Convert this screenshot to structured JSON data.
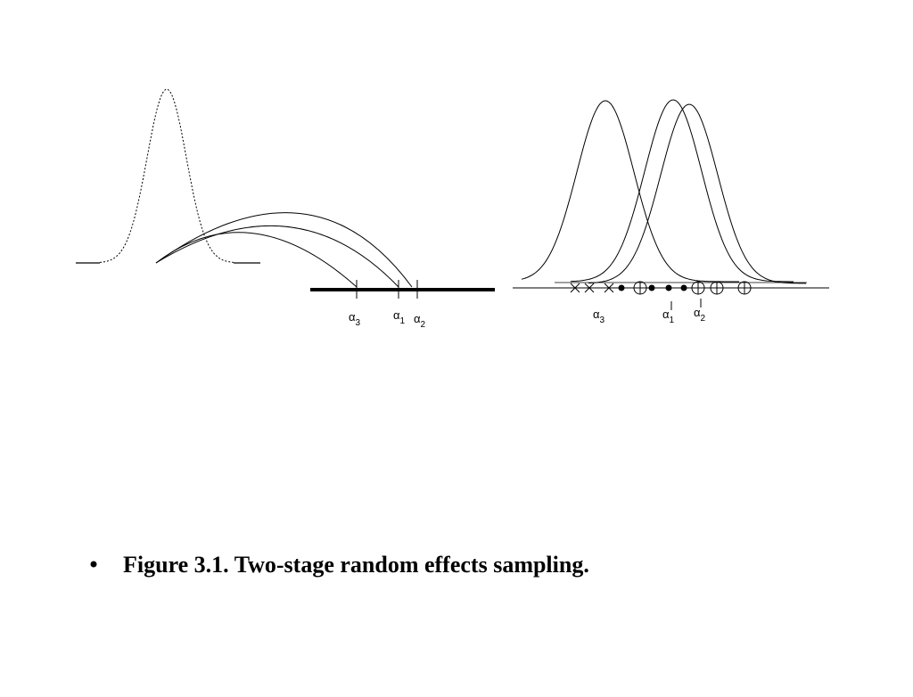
{
  "left_labels": [
    {
      "letter": "α",
      "sub": "3"
    },
    {
      "letter": "α",
      "sub": "1"
    },
    {
      "letter": "α",
      "sub": "2"
    }
  ],
  "right_labels": [
    {
      "letter": "α",
      "sub": "3"
    },
    {
      "letter": "α",
      "sub": "1"
    },
    {
      "letter": "α",
      "sub": "2"
    }
  ],
  "caption": "Figure 3.1. Two-stage random effects sampling."
}
